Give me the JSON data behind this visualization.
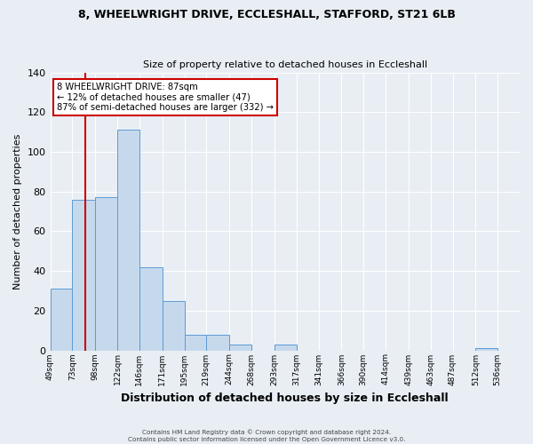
{
  "title": "8, WHEELWRIGHT DRIVE, ECCLESHALL, STAFFORD, ST21 6LB",
  "subtitle": "Size of property relative to detached houses in Eccleshall",
  "xlabel": "Distribution of detached houses by size in Eccleshall",
  "ylabel": "Number of detached properties",
  "bins": [
    "49sqm",
    "73sqm",
    "98sqm",
    "122sqm",
    "146sqm",
    "171sqm",
    "195sqm",
    "219sqm",
    "244sqm",
    "268sqm",
    "293sqm",
    "317sqm",
    "341sqm",
    "366sqm",
    "390sqm",
    "414sqm",
    "439sqm",
    "463sqm",
    "487sqm",
    "512sqm",
    "536sqm"
  ],
  "bar_heights": [
    31,
    76,
    77,
    111,
    42,
    25,
    8,
    8,
    3,
    0,
    3,
    0,
    0,
    0,
    0,
    0,
    0,
    0,
    0,
    1,
    0
  ],
  "bar_color": "#c6d9ec",
  "bar_edge_color": "#5b9bd5",
  "ylim": [
    0,
    140
  ],
  "yticks": [
    0,
    20,
    40,
    60,
    80,
    100,
    120,
    140
  ],
  "annotation_title": "8 WHEELWRIGHT DRIVE: 87sqm",
  "annotation_line1": "← 12% of detached houses are smaller (47)",
  "annotation_line2": "87% of semi-detached houses are larger (332) →",
  "annotation_box_color": "#ffffff",
  "annotation_box_edge": "#cc0000",
  "footer_line1": "Contains HM Land Registry data © Crown copyright and database right 2024.",
  "footer_line2": "Contains public sector information licensed under the Open Government Licence v3.0.",
  "bin_edges": [
    49,
    73,
    98,
    122,
    146,
    171,
    195,
    219,
    244,
    268,
    293,
    317,
    341,
    366,
    390,
    414,
    439,
    463,
    487,
    512,
    536,
    560
  ],
  "background_color": "#e8eef4",
  "grid_color": "#ffffff",
  "line_color": "#cc0000",
  "property_sqm": 87
}
